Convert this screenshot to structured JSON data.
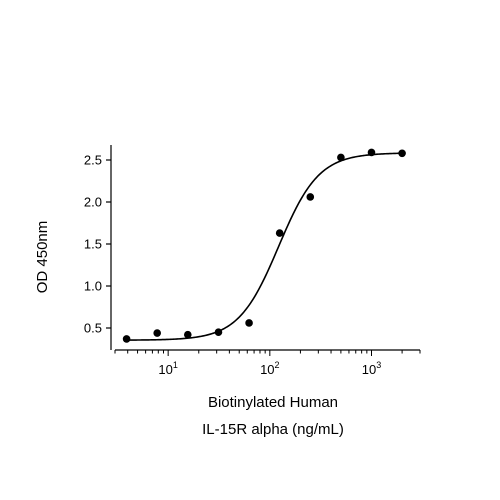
{
  "chart_data": {
    "type": "scatter",
    "title": "",
    "xlabel_line1": "Biotinylated Human",
    "xlabel_line2": "IL-15R alpha (ng/mL)",
    "ylabel": "OD 450nm",
    "xscale": "log",
    "xlim": [
      3,
      3000
    ],
    "ylim": [
      0.3,
      2.75
    ],
    "grid": false,
    "legend": "none",
    "x_ticks": [
      {
        "base": "10",
        "exp": "1",
        "value": 10
      },
      {
        "base": "10",
        "exp": "2",
        "value": 100
      },
      {
        "base": "10",
        "exp": "3",
        "value": 1000
      }
    ],
    "y_ticks": [
      "0.5",
      "1.0",
      "1.5",
      "2.0",
      "2.5"
    ],
    "series": [
      {
        "x": [
          3.9,
          7.8,
          15.6,
          31.25,
          62.5,
          125,
          250,
          500,
          1000,
          2000
        ],
        "y": [
          0.37,
          0.44,
          0.42,
          0.45,
          0.56,
          1.63,
          2.06,
          2.53,
          2.59,
          2.58
        ],
        "marker": "circle",
        "color": "#000000"
      }
    ],
    "fit_curve": {
      "model": "4PL",
      "bottom": 0.355,
      "top": 2.585,
      "ec50": 122,
      "hill": 2.2,
      "color": "#000000"
    }
  }
}
